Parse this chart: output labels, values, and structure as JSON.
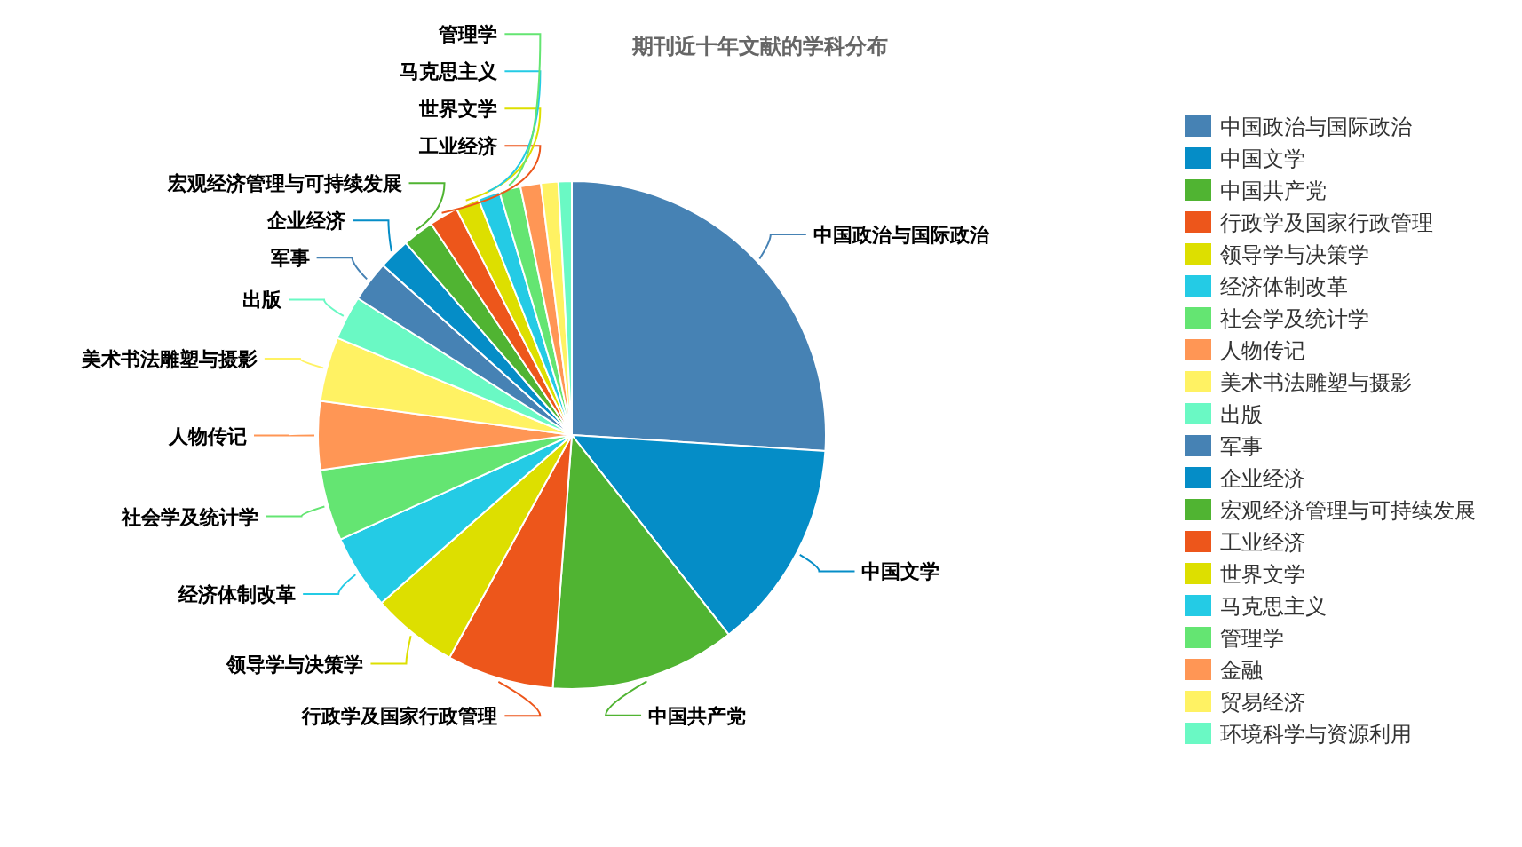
{
  "chart_data": {
    "type": "pie",
    "title": "期刊近十年文献的学科分布",
    "categories": [
      "中国政治与国际政治",
      "中国文学",
      "中国共产党",
      "行政学及国家行政管理",
      "领导学与决策学",
      "经济体制改革",
      "社会学及统计学",
      "人物传记",
      "美术书法雕塑与摄影",
      "出版",
      "军事",
      "企业经济",
      "宏观经济管理与可持续发展",
      "工业经济",
      "世界文学",
      "马克思主义",
      "管理学",
      "金融",
      "贸易经济",
      "环境科学与资源利用"
    ],
    "values": [
      26.0,
      13.4,
      11.8,
      6.8,
      5.5,
      4.75,
      4.55,
      4.35,
      4.1,
      2.8,
      2.6,
      2.0,
      2.0,
      1.85,
      1.5,
      1.4,
      1.35,
      1.3,
      1.1,
      0.85
    ],
    "colors": [
      "#4682b4",
      "#058dc7",
      "#50b432",
      "#ed561b",
      "#dddf00",
      "#24cbe5",
      "#64e572",
      "#ff9655",
      "#fff263",
      "#6af9c4",
      "#4682b4",
      "#058dc7",
      "#50b432",
      "#ed561b",
      "#dddf00",
      "#24cbe5",
      "#64e572",
      "#ff9655",
      "#fff263",
      "#6af9c4"
    ],
    "legend": "right"
  }
}
